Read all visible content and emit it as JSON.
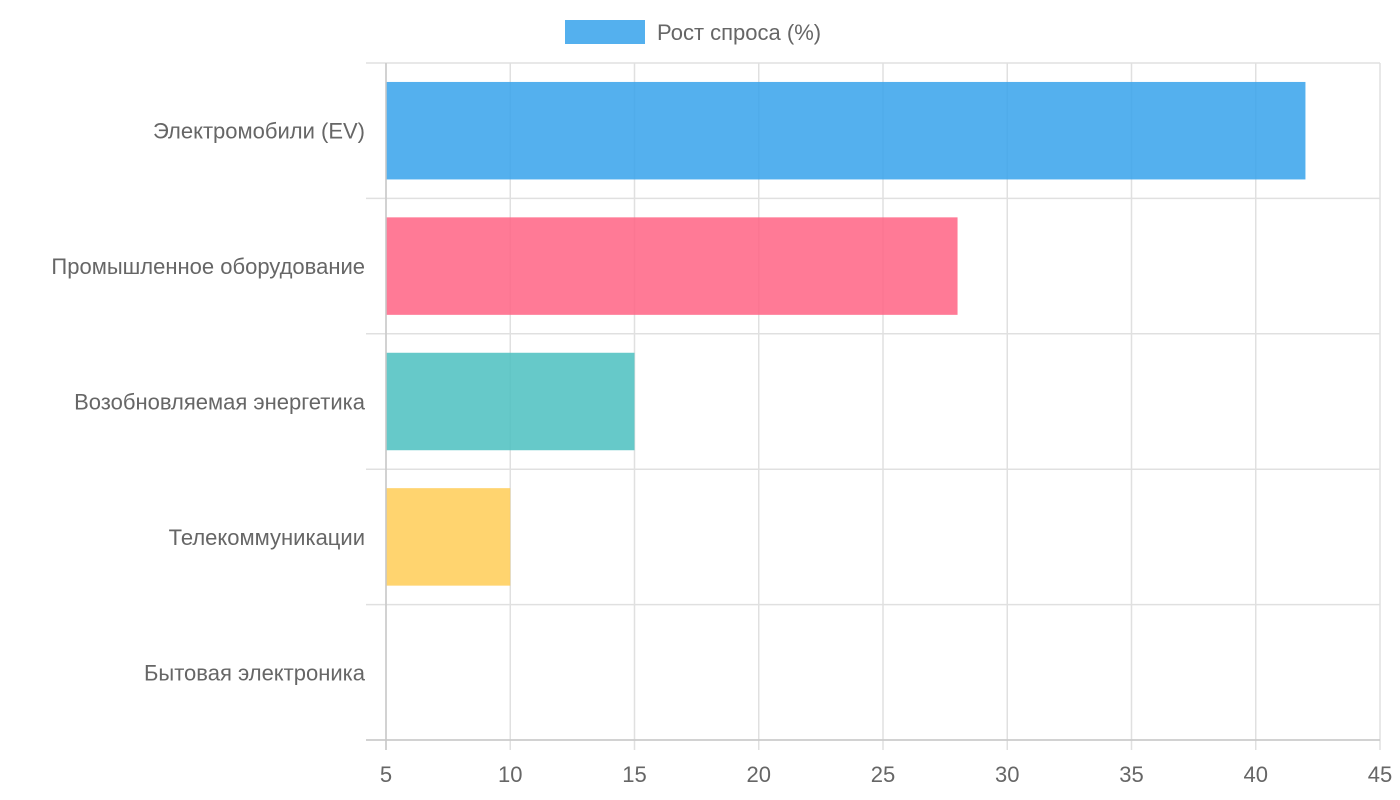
{
  "chart_data": {
    "type": "bar",
    "orientation": "horizontal",
    "categories": [
      "Электромобили (EV)",
      "Промышленное оборудование",
      "Возобновляемая энергетика",
      "Телекоммуникации",
      "Бытовая электроника"
    ],
    "series": [
      {
        "name": "Рост спроса (%)",
        "values": [
          42,
          28,
          15,
          10,
          5
        ]
      }
    ],
    "bar_colors": [
      "#36a2eb",
      "#ff6384",
      "#4bc0c0",
      "#ffcd56",
      "#9966ff"
    ],
    "xlim": [
      5,
      45
    ],
    "xticks": [
      "5",
      "10",
      "15",
      "20",
      "25",
      "30",
      "35",
      "40",
      "45"
    ],
    "grid": true,
    "legend_position": "top"
  }
}
